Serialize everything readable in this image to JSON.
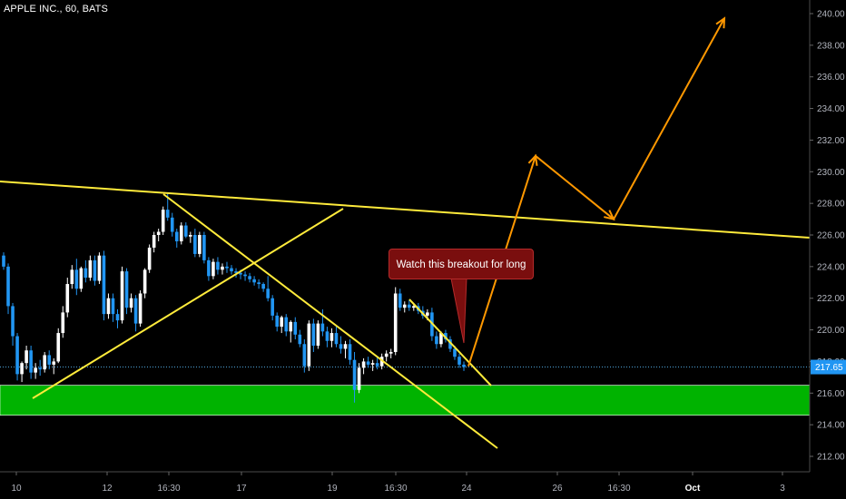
{
  "header": {
    "title": "APPLE INC., 60, BATS"
  },
  "annotation": {
    "text": "Watch this breakout for long"
  },
  "price_axis": {
    "current_price_label": "217.65",
    "ticks": [
      "212.00",
      "214.00",
      "216.00",
      "218.00",
      "220.00",
      "222.00",
      "224.00",
      "226.00",
      "228.00",
      "230.00",
      "232.00",
      "234.00",
      "236.00",
      "238.00",
      "240.00"
    ]
  },
  "time_axis": {
    "ticks": [
      "10",
      "12",
      "16:30",
      "17",
      "19",
      "16:30",
      "24",
      "26",
      "16:30",
      "Oct",
      "3"
    ]
  },
  "colors": {
    "up_candle": "#ffffff",
    "down_candle": "#2196f3",
    "support_zone": "#00b300",
    "trend_lines": "#ffeb3b",
    "projection": "#ff9800",
    "current_price_line": "#4fa3d9",
    "callout_bg": "#7a0e0e"
  },
  "chart_data": {
    "type": "candlestick",
    "symbol": "APPLE INC.",
    "interval": "60",
    "exchange": "BATS",
    "ylim": [
      211,
      241
    ],
    "current_price": 217.65,
    "support_zone": [
      214.6,
      216.5
    ],
    "candles_ohlc": [
      [
        224.7,
        224.9,
        223.8,
        224.0
      ],
      [
        224.0,
        224.2,
        221.0,
        221.5
      ],
      [
        221.5,
        221.7,
        219.0,
        219.6
      ],
      [
        219.6,
        219.8,
        216.8,
        217.2
      ],
      [
        217.2,
        218.0,
        216.7,
        217.9
      ],
      [
        217.9,
        219.0,
        217.5,
        218.7
      ],
      [
        218.7,
        219.0,
        216.9,
        217.3
      ],
      [
        217.3,
        217.9,
        216.9,
        217.6
      ],
      [
        217.6,
        218.1,
        217.1,
        217.5
      ],
      [
        217.5,
        218.6,
        217.3,
        218.4
      ],
      [
        218.4,
        218.7,
        217.5,
        217.8
      ],
      [
        217.8,
        218.2,
        217.2,
        218.0
      ],
      [
        218.0,
        220.1,
        217.9,
        219.8
      ],
      [
        219.8,
        221.5,
        219.5,
        221.1
      ],
      [
        221.1,
        223.3,
        220.8,
        222.9
      ],
      [
        222.9,
        224.1,
        222.6,
        223.8
      ],
      [
        223.8,
        224.5,
        222.2,
        222.6
      ],
      [
        222.6,
        224.0,
        222.4,
        223.9
      ],
      [
        223.9,
        224.4,
        223.0,
        223.3
      ],
      [
        223.3,
        224.7,
        223.1,
        224.4
      ],
      [
        224.4,
        224.7,
        222.8,
        223.1
      ],
      [
        223.1,
        224.9,
        222.9,
        224.7
      ],
      [
        224.7,
        225.0,
        220.6,
        221.0
      ],
      [
        221.0,
        222.3,
        220.7,
        222.0
      ],
      [
        222.0,
        222.3,
        220.5,
        221.0
      ],
      [
        221.0,
        221.3,
        220.1,
        220.6
      ],
      [
        220.6,
        224.0,
        220.4,
        223.7
      ],
      [
        223.7,
        223.9,
        221.0,
        221.4
      ],
      [
        221.4,
        222.3,
        221.1,
        222.0
      ],
      [
        222.0,
        222.2,
        219.9,
        220.4
      ],
      [
        220.4,
        222.5,
        220.2,
        222.3
      ],
      [
        222.3,
        223.9,
        222.0,
        223.8
      ],
      [
        223.8,
        225.4,
        223.6,
        225.2
      ],
      [
        225.2,
        226.2,
        224.9,
        226.0
      ],
      [
        226.0,
        226.4,
        225.6,
        226.2
      ],
      [
        226.2,
        227.8,
        226.0,
        227.6
      ],
      [
        227.6,
        228.6,
        226.9,
        227.1
      ],
      [
        227.1,
        227.4,
        225.9,
        226.2
      ],
      [
        226.2,
        226.4,
        225.2,
        225.6
      ],
      [
        225.6,
        226.8,
        225.4,
        226.6
      ],
      [
        226.6,
        226.8,
        225.8,
        225.9
      ],
      [
        225.9,
        226.2,
        225.5,
        226.0
      ],
      [
        226.0,
        226.4,
        224.6,
        224.8
      ],
      [
        224.8,
        226.2,
        224.6,
        226.0
      ],
      [
        226.0,
        226.2,
        224.2,
        224.4
      ],
      [
        224.4,
        224.6,
        223.1,
        223.4
      ],
      [
        223.4,
        224.5,
        223.2,
        224.3
      ],
      [
        224.3,
        224.6,
        223.5,
        223.8
      ],
      [
        223.8,
        224.2,
        223.5,
        224.0
      ],
      [
        224.0,
        224.3,
        223.6,
        223.9
      ],
      [
        223.9,
        224.1,
        223.5,
        223.7
      ],
      [
        223.7,
        223.9,
        223.3,
        223.6
      ],
      [
        223.6,
        223.8,
        223.2,
        223.5
      ],
      [
        223.5,
        223.7,
        223.1,
        223.4
      ],
      [
        223.4,
        223.6,
        223.0,
        223.2
      ],
      [
        223.2,
        223.4,
        222.8,
        223.0
      ],
      [
        223.0,
        223.2,
        222.6,
        222.9
      ],
      [
        222.9,
        223.0,
        222.4,
        222.6
      ],
      [
        222.6,
        223.4,
        221.8,
        222.0
      ],
      [
        222.0,
        222.2,
        220.6,
        220.9
      ],
      [
        220.9,
        221.1,
        219.9,
        220.2
      ],
      [
        220.2,
        220.9,
        219.8,
        220.8
      ],
      [
        220.8,
        221.0,
        219.6,
        219.9
      ],
      [
        219.9,
        220.6,
        219.2,
        220.5
      ],
      [
        220.5,
        220.8,
        219.4,
        219.7
      ],
      [
        219.7,
        220.0,
        218.9,
        219.1
      ],
      [
        219.1,
        219.4,
        217.3,
        217.7
      ],
      [
        217.7,
        220.6,
        217.4,
        220.4
      ],
      [
        220.4,
        220.7,
        218.6,
        219.0
      ],
      [
        219.0,
        220.6,
        218.8,
        220.4
      ],
      [
        220.4,
        221.3,
        219.6,
        219.9
      ],
      [
        219.9,
        220.2,
        218.9,
        219.3
      ],
      [
        219.3,
        220.1,
        218.9,
        219.8
      ],
      [
        219.8,
        220.2,
        218.9,
        219.1
      ],
      [
        219.1,
        219.6,
        218.5,
        218.8
      ],
      [
        218.8,
        219.3,
        218.2,
        219.1
      ],
      [
        219.1,
        219.4,
        217.8,
        218.1
      ],
      [
        218.1,
        218.6,
        215.4,
        216.2
      ],
      [
        216.2,
        217.9,
        216.0,
        217.6
      ],
      [
        217.6,
        218.2,
        217.2,
        218.0
      ],
      [
        218.0,
        218.3,
        217.6,
        217.8
      ],
      [
        217.8,
        218.1,
        217.4,
        217.9
      ],
      [
        217.9,
        218.3,
        217.5,
        217.7
      ],
      [
        217.7,
        218.5,
        217.5,
        218.3
      ],
      [
        218.3,
        218.7,
        218.0,
        218.5
      ],
      [
        218.5,
        218.8,
        218.2,
        218.6
      ],
      [
        218.6,
        222.7,
        218.4,
        222.3
      ],
      [
        222.3,
        222.6,
        221.2,
        221.4
      ],
      [
        221.4,
        221.8,
        221.1,
        221.6
      ],
      [
        221.6,
        221.9,
        221.2,
        221.4
      ],
      [
        221.4,
        221.7,
        221.2,
        221.5
      ],
      [
        221.5,
        221.7,
        221.0,
        221.2
      ],
      [
        221.2,
        221.5,
        220.7,
        220.9
      ],
      [
        220.9,
        221.3,
        220.6,
        221.1
      ],
      [
        221.1,
        221.4,
        219.3,
        219.6
      ],
      [
        219.6,
        219.9,
        218.8,
        219.1
      ],
      [
        219.1,
        219.9,
        218.9,
        219.8
      ],
      [
        219.8,
        220.0,
        219.2,
        219.4
      ],
      [
        219.4,
        219.6,
        218.6,
        218.8
      ],
      [
        218.8,
        219.0,
        218.1,
        218.3
      ],
      [
        218.3,
        218.5,
        217.6,
        217.8
      ],
      [
        217.8,
        218.0,
        217.4,
        217.65
      ]
    ],
    "trend_lines": [
      {
        "from": [
          "start",
          229.4
        ],
        "to": [
          "end",
          225.9
        ]
      },
      {
        "from": [
          "10",
          215.8
        ],
        "to": [
          "19",
          227.7
        ]
      },
      {
        "from": [
          "16:30",
          228.6
        ],
        "to": [
          "26",
          212.6
        ]
      },
      {
        "from": [
          "16:30",
          222.2
        ],
        "to": [
          "24",
          216.5
        ]
      }
    ],
    "projection_path": [
      [
        217.7
      ],
      [
        231.0
      ],
      [
        227.0
      ],
      [
        239.7
      ]
    ]
  }
}
